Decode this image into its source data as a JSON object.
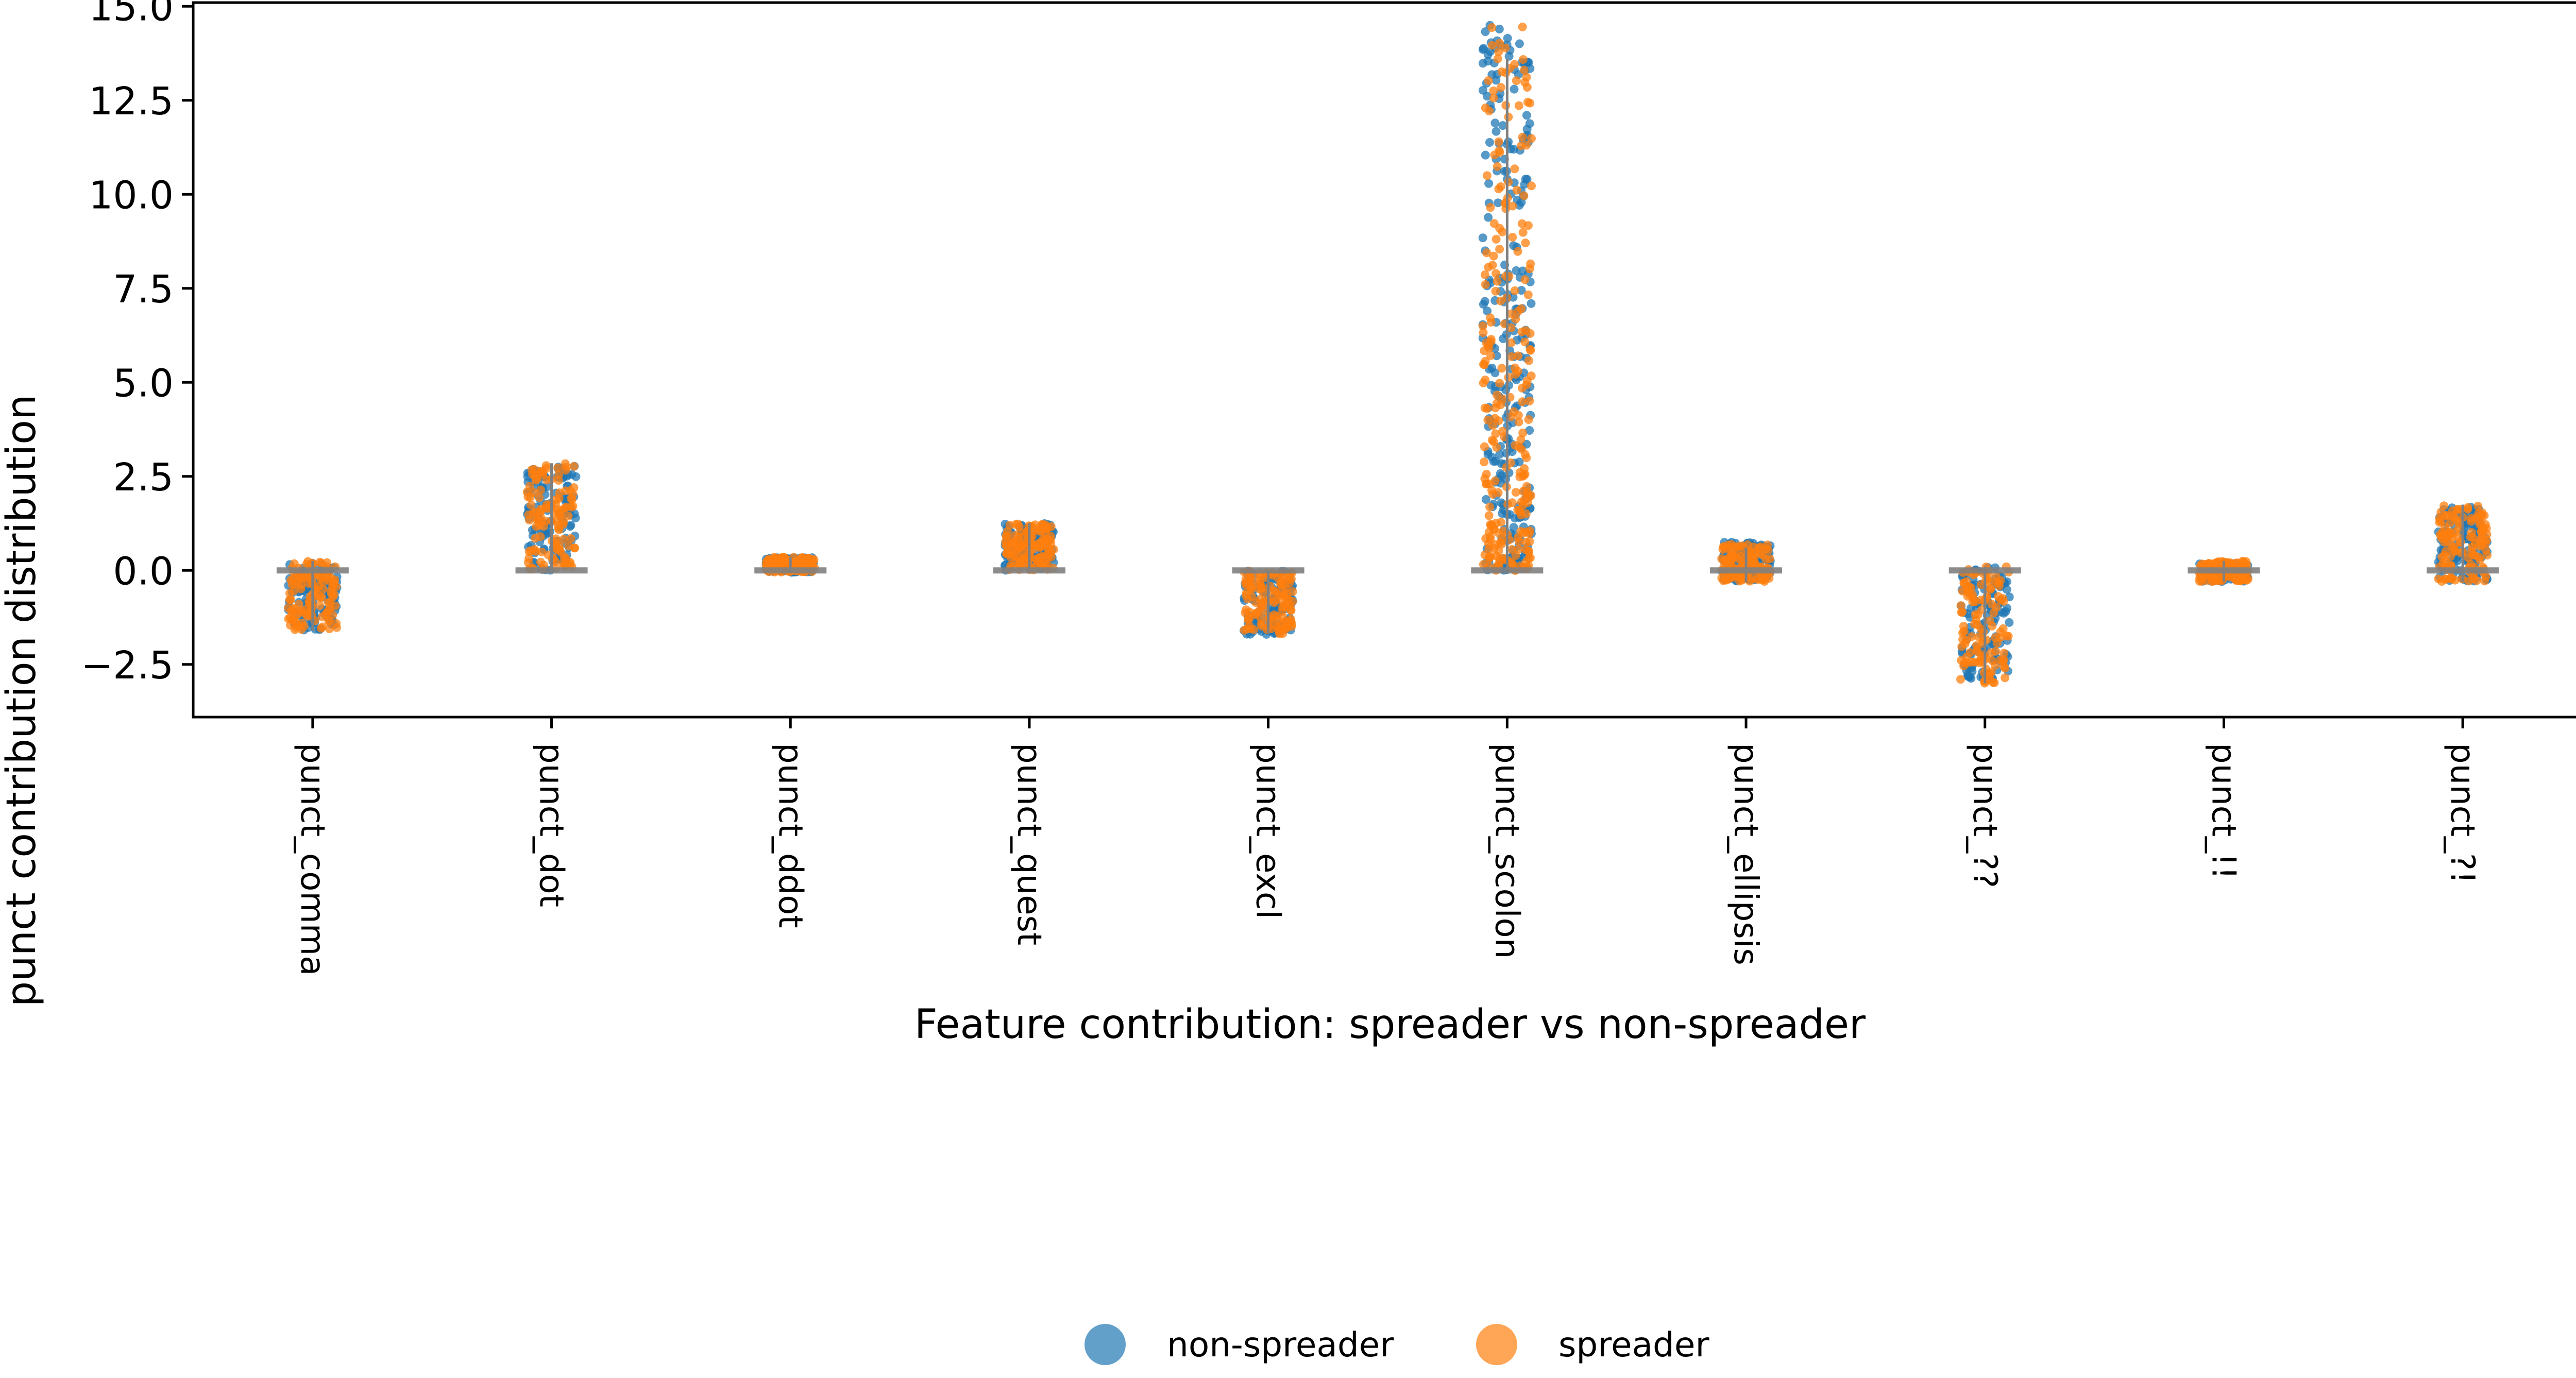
{
  "chart_data": {
    "type": "scatter",
    "subtype": "strip plot with jitter and box plots",
    "title": "",
    "xlabel": "Feature contribution: spreader vs non-spreader",
    "ylabel": "punct contribution distribution",
    "ylim": [
      -3.9,
      15.1
    ],
    "yticks": [
      -2.5,
      0.0,
      2.5,
      5.0,
      7.5,
      10.0,
      12.5,
      15.0
    ],
    "ytick_labels": [
      "−2.5",
      "0.0",
      "2.5",
      "5.0",
      "7.5",
      "10.0",
      "12.5",
      "15.0"
    ],
    "categories": [
      "punct_comma",
      "punct_dot",
      "punct_ddot",
      "punct_quest",
      "punct_excl",
      "punct_scolon",
      "punct_ellipsis",
      "punct_??",
      "punct_!!",
      "punct_?!"
    ],
    "grid": false,
    "legend": {
      "position": "bottom-center",
      "entries": [
        {
          "label": "non-spreader",
          "color": "#1f77b4"
        },
        {
          "label": "spreader",
          "color": "#ff7f0e"
        }
      ]
    },
    "series": [
      {
        "name": "non-spreader",
        "color": "#1f77b4",
        "ranges": [
          [
            -1.6,
            0.2
          ],
          [
            0.0,
            2.8
          ],
          [
            -0.05,
            0.35
          ],
          [
            0.0,
            1.25
          ],
          [
            -1.7,
            0.0
          ],
          [
            0.0,
            14.5
          ],
          [
            -0.3,
            0.75
          ],
          [
            -2.9,
            0.1
          ],
          [
            -0.3,
            0.2
          ],
          [
            -0.3,
            1.7
          ]
        ]
      },
      {
        "name": "spreader",
        "color": "#ff7f0e",
        "ranges": [
          [
            -1.6,
            0.25
          ],
          [
            0.0,
            2.85
          ],
          [
            -0.05,
            0.35
          ],
          [
            0.0,
            1.25
          ],
          [
            -1.7,
            0.0
          ],
          [
            0.0,
            14.5
          ],
          [
            -0.3,
            0.7
          ],
          [
            -3.0,
            0.1
          ],
          [
            -0.3,
            0.25
          ],
          [
            -0.3,
            1.75
          ]
        ]
      }
    ],
    "box_whiskers": [
      [
        -1.6,
        0.25
      ],
      [
        0.0,
        2.85
      ],
      [
        -0.05,
        0.35
      ],
      [
        0.0,
        1.25
      ],
      [
        -1.7,
        0.0
      ],
      [
        0.0,
        13.6
      ],
      [
        -0.3,
        0.6
      ],
      [
        -3.0,
        0.1
      ],
      [
        -0.3,
        0.25
      ],
      [
        -0.3,
        1.75
      ]
    ],
    "box_color": "#808080"
  }
}
